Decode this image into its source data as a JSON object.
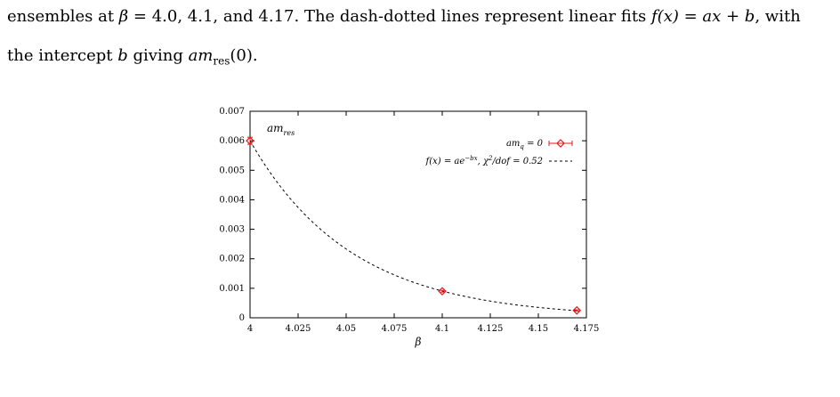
{
  "caption": {
    "line1_prefix": "ensembles at ",
    "line1_beta_sym": "β",
    "line1_values": " = 4.0, 4.1, and 4.17. The dash-dotted lines represent linear fits ",
    "line1_fx": "f(x) = ax + b",
    "line1_suffix": ", with",
    "line2_prefix": "the intercept ",
    "line2_b": "b",
    "line2_mid": " giving ",
    "line2_am": "am",
    "line2_sub": "res",
    "line2_tail": "(0)."
  },
  "chart_data": {
    "type": "scatter",
    "panel_label": "am",
    "panel_label_sub": "res",
    "xlabel": "β",
    "ylabel": "",
    "xlim": [
      4.0,
      4.175
    ],
    "ylim": [
      0,
      0.007
    ],
    "x_ticks": [
      "4",
      "4.025",
      "4.05",
      "4.075",
      "4.1",
      "4.125",
      "4.15",
      "4.175"
    ],
    "y_ticks": [
      "0",
      "0.001",
      "0.002",
      "0.003",
      "0.004",
      "0.005",
      "0.006",
      "0.007"
    ],
    "legend_position": "top-right",
    "series": [
      {
        "name": "am_q = 0",
        "kind": "points",
        "color": "#e41a1c",
        "marker": "diamond",
        "x": [
          4.0,
          4.1,
          4.17
        ],
        "y": [
          0.006,
          0.0009,
          0.00025
        ],
        "yerr": [
          0.00012,
          3e-05,
          2e-05
        ]
      },
      {
        "name": "f(x) = ae^{-bx}, χ²/dof = 0.52",
        "kind": "fit",
        "color": "#000000",
        "style": "dashed",
        "model": "exponential",
        "params": {
          "a": 0.006,
          "b": 18.9,
          "x0": 4.0
        }
      }
    ]
  }
}
